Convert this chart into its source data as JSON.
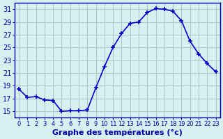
{
  "hours": [
    0,
    1,
    2,
    3,
    4,
    5,
    6,
    7,
    8,
    9,
    10,
    11,
    12,
    13,
    14,
    15,
    16,
    17,
    18,
    19,
    20,
    21,
    22,
    23
  ],
  "temps": [
    18.5,
    17.2,
    17.3,
    16.8,
    16.7,
    15.0,
    15.1,
    15.1,
    15.2,
    18.7,
    22.0,
    25.0,
    27.2,
    28.8,
    29.0,
    30.5,
    31.1,
    31.0,
    30.7,
    29.2,
    26.0,
    24.0,
    22.5,
    21.2
  ],
  "line_color": "#0000cc",
  "marker": "+",
  "marker_size": 5,
  "bg_color": "#d8f0f0",
  "grid_color": "#b0c8c8",
  "xlabel": "Graphe des températures (°c)",
  "xlim": [
    -0.5,
    23.5
  ],
  "ylim": [
    14,
    32
  ],
  "yticks": [
    15,
    17,
    19,
    21,
    23,
    25,
    27,
    29,
    31
  ],
  "xtick_labels": [
    "0",
    "1",
    "2",
    "3",
    "4",
    "5",
    "6",
    "7",
    "8",
    "9",
    "10",
    "11",
    "12",
    "13",
    "14",
    "15",
    "16",
    "17",
    "18",
    "19",
    "20",
    "21",
    "22",
    "23"
  ],
  "axis_color": "#0000aa",
  "tick_color": "#0000aa",
  "label_fontsize": 7,
  "xlabel_fontsize": 8,
  "title_fontweight": "bold"
}
